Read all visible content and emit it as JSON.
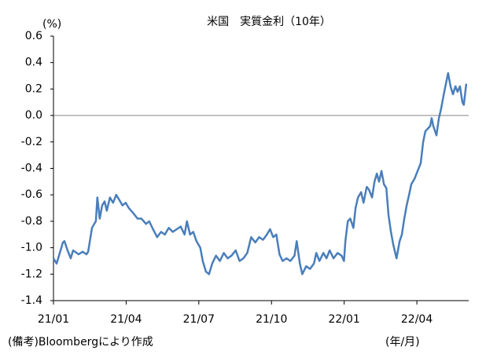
{
  "chart_data": {
    "type": "line",
    "title": "米国　実質金利（10年）",
    "y_unit_label": "(%)",
    "x_unit_label": "(年/月)",
    "note": "(備考)Bloombergにより作成",
    "xlim": [
      0,
      17.14
    ],
    "xticks": [
      {
        "value": 0,
        "label": "21/01"
      },
      {
        "value": 3,
        "label": "21/04"
      },
      {
        "value": 6,
        "label": "21/07"
      },
      {
        "value": 9,
        "label": "21/10"
      },
      {
        "value": 12,
        "label": "22/01"
      },
      {
        "value": 15,
        "label": "22/04"
      }
    ],
    "ylim": [
      -1.4,
      0.6
    ],
    "yticks": [
      0.6,
      0.4,
      0.2,
      {
        "value": 0,
        "label": "0.0"
      },
      -0.2,
      -0.4,
      -0.6,
      -0.8,
      {
        "value": -1,
        "label": "-1.0"
      },
      -1.2,
      -1.4
    ],
    "zero_line": true,
    "grid": false,
    "series": [
      {
        "name": "実質金利",
        "color": "#4a7ebb",
        "x": [
          0,
          0.13,
          0.39,
          0.45,
          0.58,
          0.71,
          0.81,
          1.04,
          1.2,
          1.36,
          1.43,
          1.59,
          1.68,
          1.75,
          1.81,
          1.91,
          2.01,
          2.11,
          2.2,
          2.33,
          2.46,
          2.59,
          2.72,
          2.85,
          2.98,
          3.11,
          3.3,
          3.47,
          3.63,
          3.82,
          3.95,
          4.11,
          4.28,
          4.44,
          4.6,
          4.76,
          4.92,
          5.09,
          5.25,
          5.41,
          5.51,
          5.64,
          5.77,
          5.9,
          6.06,
          6.16,
          6.29,
          6.42,
          6.55,
          6.71,
          6.87,
          7.03,
          7.19,
          7.35,
          7.52,
          7.68,
          7.84,
          8.0,
          8.16,
          8.33,
          8.49,
          8.65,
          8.81,
          8.94,
          9.07,
          9.2,
          9.33,
          9.46,
          9.62,
          9.78,
          9.95,
          10.04,
          10.17,
          10.27,
          10.43,
          10.59,
          10.75,
          10.85,
          10.98,
          11.14,
          11.27,
          11.4,
          11.56,
          11.73,
          11.89,
          11.99,
          12.05,
          12.15,
          12.25,
          12.38,
          12.47,
          12.57,
          12.7,
          12.8,
          12.93,
          13.02,
          13.15,
          13.25,
          13.35,
          13.44,
          13.54,
          13.64,
          13.74,
          13.83,
          13.93,
          14.03,
          14.16,
          14.29,
          14.38,
          14.48,
          14.58,
          14.68,
          14.77,
          14.9,
          15.03,
          15.16,
          15.26,
          15.35,
          15.45,
          15.55,
          15.61,
          15.68,
          15.81,
          15.91,
          16.0,
          16.1,
          16.2,
          16.29,
          16.39,
          16.49,
          16.59,
          16.68,
          16.78,
          16.88,
          16.94,
          17.04
        ],
        "values": [
          -1.08,
          -1.12,
          -0.96,
          -0.95,
          -1.02,
          -1.08,
          -1.02,
          -1.05,
          -1.03,
          -1.05,
          -1.03,
          -0.85,
          -0.82,
          -0.8,
          -0.62,
          -0.78,
          -0.68,
          -0.65,
          -0.72,
          -0.62,
          -0.66,
          -0.6,
          -0.64,
          -0.68,
          -0.66,
          -0.7,
          -0.74,
          -0.78,
          -0.78,
          -0.82,
          -0.8,
          -0.86,
          -0.92,
          -0.88,
          -0.9,
          -0.85,
          -0.88,
          -0.86,
          -0.84,
          -0.9,
          -0.8,
          -0.9,
          -0.88,
          -0.95,
          -1.0,
          -1.1,
          -1.18,
          -1.2,
          -1.12,
          -1.06,
          -1.1,
          -1.04,
          -1.08,
          -1.06,
          -1.02,
          -1.1,
          -1.08,
          -1.04,
          -0.92,
          -0.96,
          -0.92,
          -0.94,
          -0.9,
          -0.86,
          -0.92,
          -0.9,
          -1.05,
          -1.1,
          -1.08,
          -1.1,
          -1.06,
          -0.95,
          -1.12,
          -1.2,
          -1.14,
          -1.16,
          -1.12,
          -1.04,
          -1.1,
          -1.04,
          -1.08,
          -1.02,
          -1.08,
          -1.04,
          -1.06,
          -1.1,
          -0.95,
          -0.8,
          -0.78,
          -0.85,
          -0.7,
          -0.62,
          -0.58,
          -0.66,
          -0.54,
          -0.56,
          -0.62,
          -0.5,
          -0.44,
          -0.5,
          -0.42,
          -0.52,
          -0.55,
          -0.75,
          -0.88,
          -0.98,
          -1.08,
          -0.95,
          -0.9,
          -0.78,
          -0.68,
          -0.6,
          -0.52,
          -0.48,
          -0.42,
          -0.36,
          -0.2,
          -0.12,
          -0.1,
          -0.08,
          -0.02,
          -0.08,
          -0.15,
          -0.02,
          0.05,
          0.15,
          0.24,
          0.32,
          0.22,
          0.16,
          0.22,
          0.18,
          0.22,
          0.1,
          0.08,
          0.24
        ]
      }
    ]
  }
}
